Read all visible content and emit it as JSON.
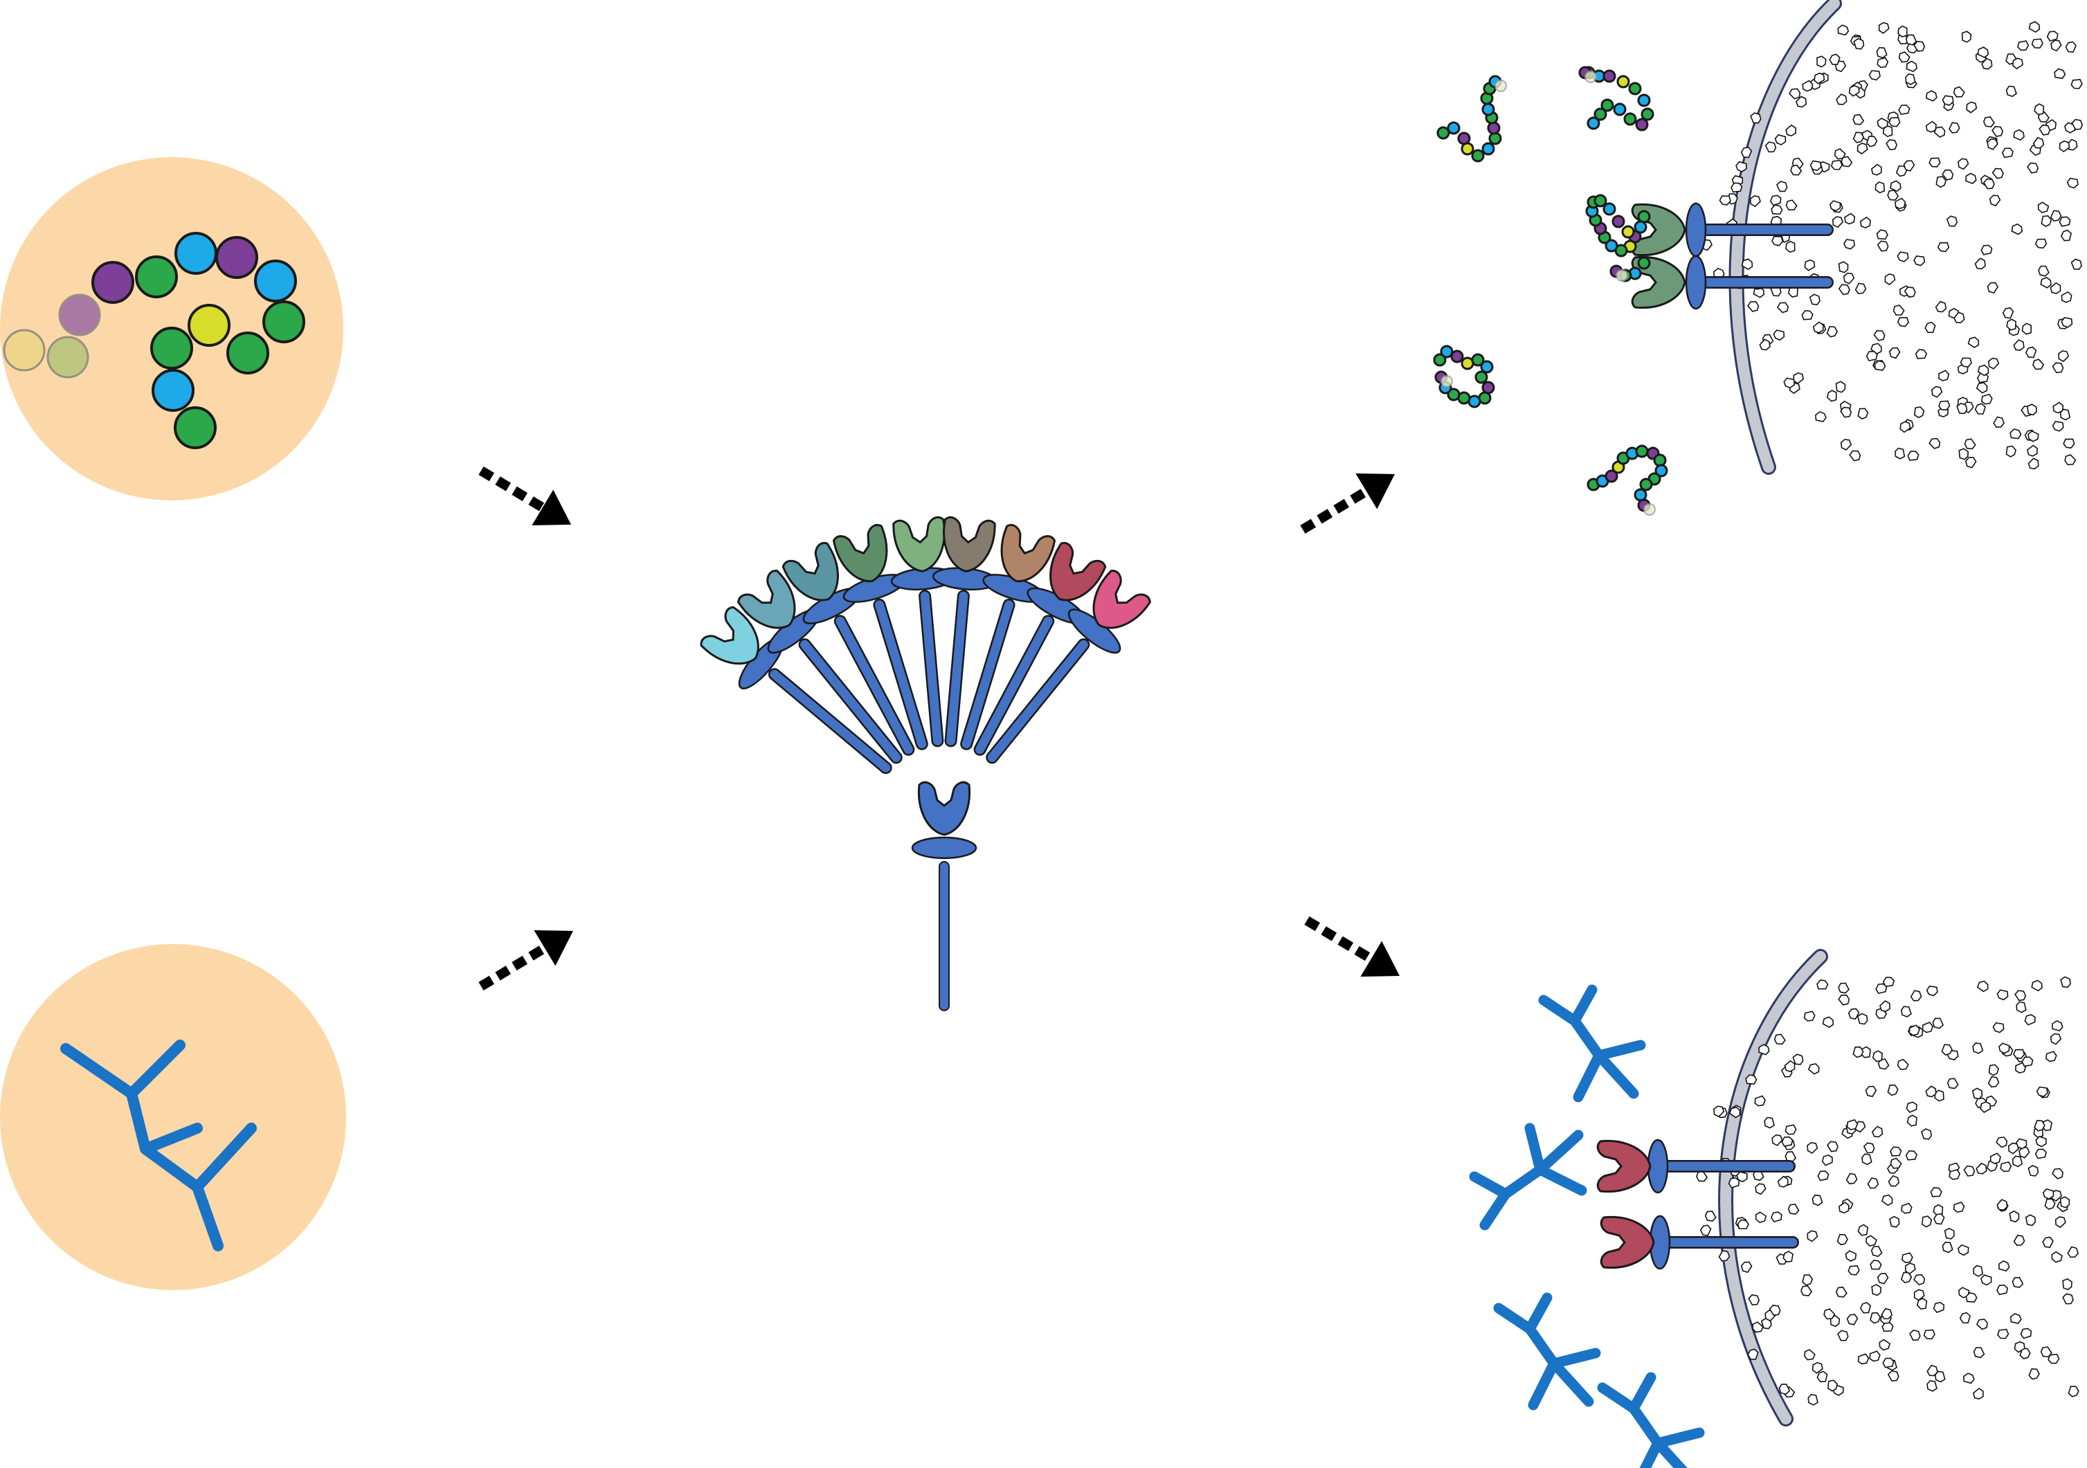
{
  "colors": {
    "circle_fill": "#fcd8a8",
    "receptor_blue": "#4472c4",
    "outline": "#1a1a1a",
    "membrane": "#c7c9d2",
    "membrane_edge": "#2e3a66",
    "antibody_blue": "#1a73c4",
    "arrow": "#000000"
  },
  "icons": {
    "peptide_chain": "bead-chain-icon",
    "branched_polymer": "branched-y-icon",
    "receptor": "cupped-receptor-icon",
    "cell": "cell-membrane-icon",
    "arrow": "dashed-arrow-icon"
  },
  "peptide_beads": [
    "#7d3f98",
    "#2ba84a",
    "#1ea9e8",
    "#7d3f98",
    "#1ea9e8",
    "#2ba84a",
    "#2ba84a",
    "#d7dd2a",
    "#2ba84a",
    "#1ea9e8",
    "#2ba84a"
  ],
  "receptor_library_colors": [
    "#7fd0e0",
    "#6aa6b8",
    "#5a96a3",
    "#5c8e6a",
    "#7fb080",
    "#857c6e",
    "#b08466",
    "#b04a5c",
    "#dd5a88"
  ],
  "center_receptor_color": "#4472c4",
  "bound_receptor_colors": {
    "top": "#6c9a78",
    "bottom": "#b04a5c"
  }
}
